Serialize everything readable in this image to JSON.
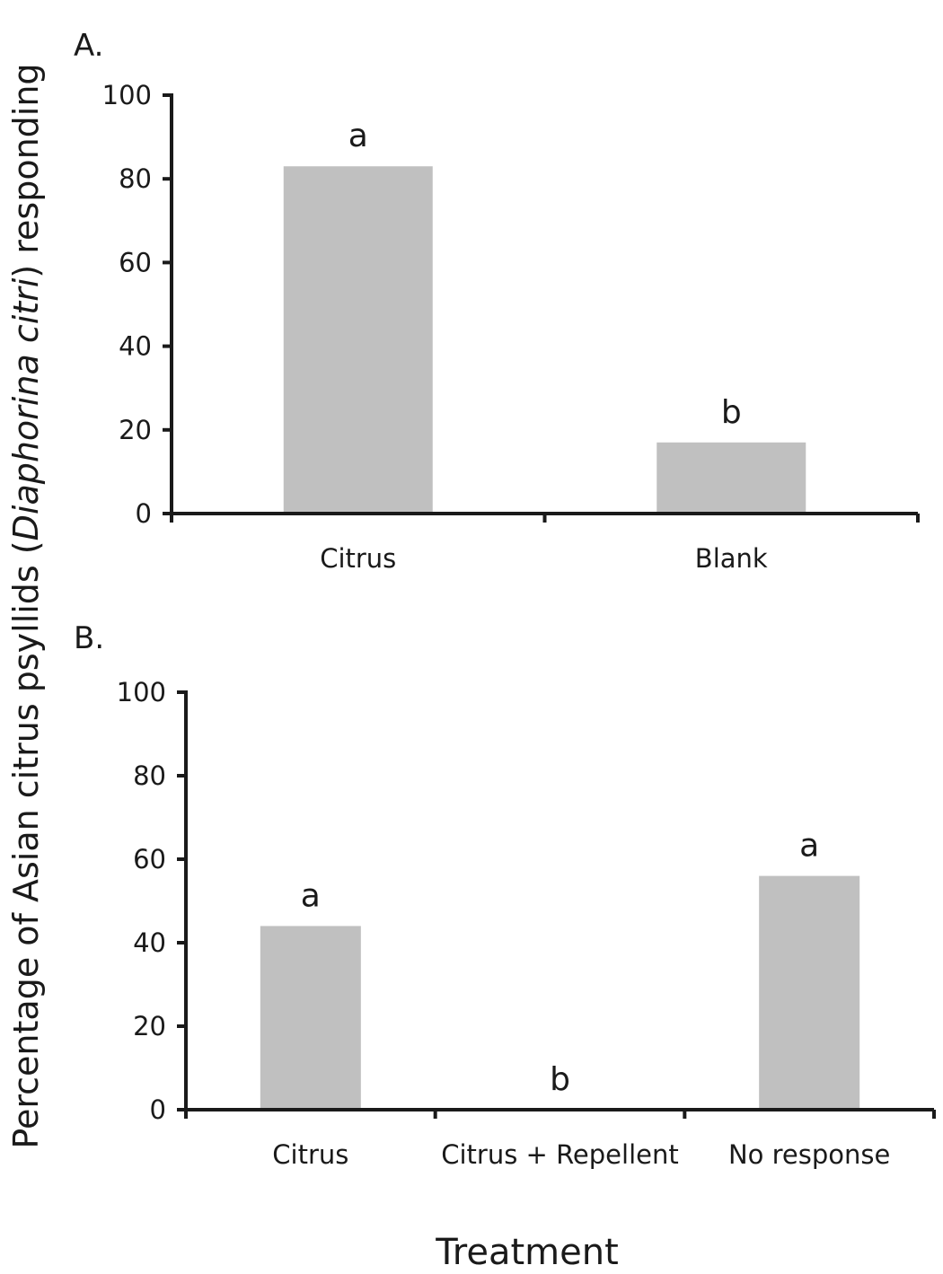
{
  "figure": {
    "ylabel_before": "Percentage of Asian citrus psyllids (",
    "ylabel_italic": "Diaphorina citri",
    "ylabel_after": ") responding",
    "xlabel": "Treatment"
  },
  "chart_data": [
    {
      "type": "bar",
      "panel_label": "A.",
      "categories": [
        "Citrus",
        "Blank"
      ],
      "values": [
        83,
        17
      ],
      "significance": [
        "a",
        "b"
      ],
      "ylim": [
        0,
        100
      ],
      "yticks": [
        0,
        20,
        40,
        60,
        80,
        100
      ],
      "bar_color": "#c0c0c0",
      "grid": false
    },
    {
      "type": "bar",
      "panel_label": "B.",
      "categories": [
        "Citrus",
        "Citrus + Repellent",
        "No response"
      ],
      "values": [
        44,
        0,
        56
      ],
      "significance": [
        "a",
        "b",
        "a"
      ],
      "ylim": [
        0,
        100
      ],
      "yticks": [
        0,
        20,
        40,
        60,
        80,
        100
      ],
      "bar_color": "#c0c0c0",
      "grid": false
    }
  ]
}
